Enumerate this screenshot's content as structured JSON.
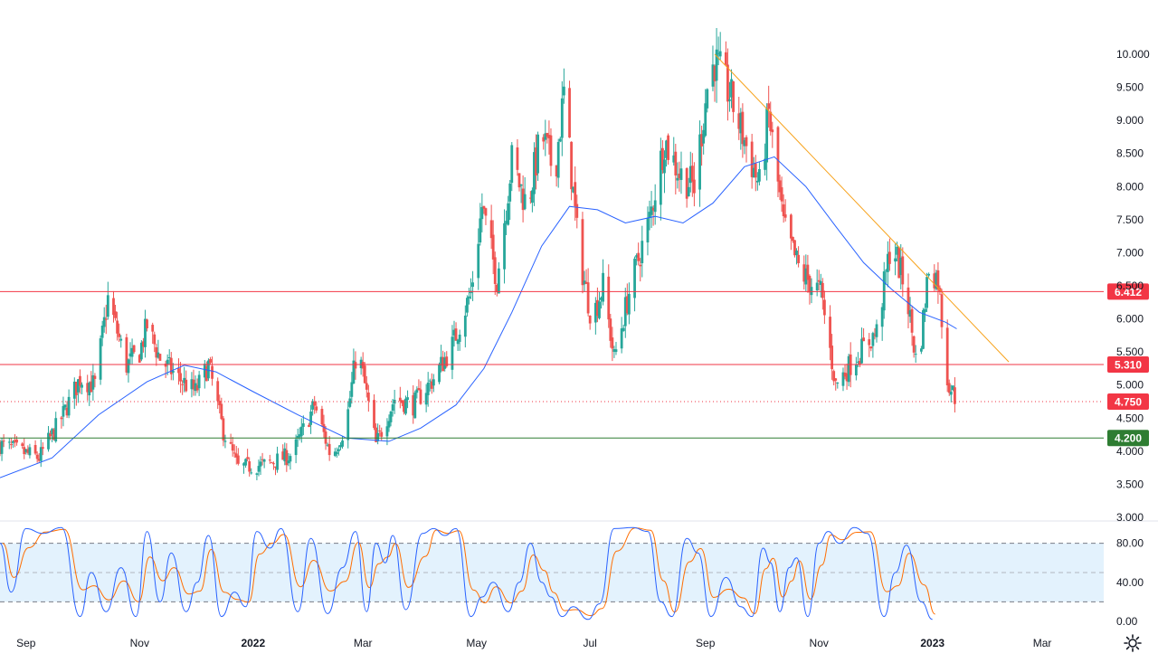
{
  "colors": {
    "up": "#26a69a",
    "down": "#ef5350",
    "ma": "#2962ff",
    "trendline": "#f7a21b",
    "level_red": "#f23645",
    "level_green": "#2e7d32",
    "osc_k": "#2962ff",
    "osc_d": "#ff6d00",
    "osc_band": "#e3f2fd"
  },
  "icons": {
    "settings": "gear-icon"
  },
  "chart_data": [
    {
      "type": "candlestick",
      "title": "",
      "ylim": [
        3.0,
        10.0
      ],
      "y_ticks": [
        "10.000",
        "9.500",
        "9.000",
        "8.500",
        "8.000",
        "7.500",
        "7.000",
        "6.500",
        "6.000",
        "5.500",
        "5.000",
        "4.500",
        "4.000",
        "3.500",
        "3.000"
      ],
      "x_ticks": [
        "Sep",
        "Nov",
        "2022",
        "Mar",
        "May",
        "Jul",
        "Sep",
        "Nov",
        "2023",
        "Mar"
      ],
      "x_tick_dates": [
        "2021-09-01",
        "2021-11-01",
        "2022-01-01",
        "2022-03-01",
        "2022-05-01",
        "2022-07-01",
        "2022-09-01",
        "2022-11-01",
        "2023-01-01",
        "2023-03-01"
      ],
      "x_range": [
        "2021-08-18",
        "2023-04-03"
      ],
      "close_path": [
        [
          "2021-08-18",
          4.1
        ],
        [
          "2021-09-08",
          3.9
        ],
        [
          "2021-09-20",
          4.5
        ],
        [
          "2021-09-30",
          5.1
        ],
        [
          "2021-10-08",
          5.0
        ],
        [
          "2021-10-15",
          6.3
        ],
        [
          "2021-10-25",
          5.3
        ],
        [
          "2021-11-01",
          5.5
        ],
        [
          "2021-11-05",
          5.9
        ],
        [
          "2021-11-12",
          5.4
        ],
        [
          "2021-11-22",
          5.1
        ],
        [
          "2021-12-01",
          4.9
        ],
        [
          "2021-12-08",
          5.3
        ],
        [
          "2021-12-16",
          4.3
        ],
        [
          "2021-12-24",
          3.75
        ],
        [
          "2022-01-08",
          3.8
        ],
        [
          "2022-01-22",
          3.95
        ],
        [
          "2022-02-03",
          4.7
        ],
        [
          "2022-02-12",
          3.9
        ],
        [
          "2022-02-20",
          4.4
        ],
        [
          "2022-02-26",
          5.6
        ],
        [
          "2022-03-08",
          4.1
        ],
        [
          "2022-03-18",
          4.8
        ],
        [
          "2022-03-28",
          4.7
        ],
        [
          "2022-04-08",
          5.1
        ],
        [
          "2022-04-18",
          5.6
        ],
        [
          "2022-04-28",
          6.4
        ],
        [
          "2022-05-04",
          7.7
        ],
        [
          "2022-05-12",
          6.6
        ],
        [
          "2022-05-20",
          8.4
        ],
        [
          "2022-05-28",
          7.7
        ],
        [
          "2022-06-05",
          8.8
        ],
        [
          "2022-06-12",
          8.2
        ],
        [
          "2022-06-17",
          9.4
        ],
        [
          "2022-06-25",
          7.0
        ],
        [
          "2022-07-02",
          6.0
        ],
        [
          "2022-07-08",
          6.5
        ],
        [
          "2022-07-14",
          5.4
        ],
        [
          "2022-07-22",
          6.4
        ],
        [
          "2022-08-02",
          7.5
        ],
        [
          "2022-08-10",
          8.7
        ],
        [
          "2022-08-18",
          8.2
        ],
        [
          "2022-08-26",
          8.0
        ],
        [
          "2022-09-02",
          9.5
        ],
        [
          "2022-09-06",
          9.9
        ],
        [
          "2022-09-14",
          9.4
        ],
        [
          "2022-09-22",
          8.7
        ],
        [
          "2022-09-30",
          8.0
        ],
        [
          "2022-10-05",
          9.1
        ],
        [
          "2022-10-13",
          7.4
        ],
        [
          "2022-10-22",
          6.7
        ],
        [
          "2022-11-02",
          6.4
        ],
        [
          "2022-11-10",
          5.0
        ],
        [
          "2022-11-20",
          5.4
        ],
        [
          "2022-12-02",
          5.8
        ],
        [
          "2022-12-10",
          7.2
        ],
        [
          "2022-12-18",
          6.4
        ],
        [
          "2022-12-24",
          5.2
        ],
        [
          "2022-12-30",
          6.8
        ],
        [
          "2023-01-04",
          6.6
        ],
        [
          "2023-01-09",
          5.1
        ],
        [
          "2023-01-14",
          4.75
        ]
      ],
      "moving_average": [
        [
          "2021-08-18",
          3.6
        ],
        [
          "2021-09-15",
          3.9
        ],
        [
          "2021-10-10",
          4.55
        ],
        [
          "2021-11-05",
          5.05
        ],
        [
          "2021-11-25",
          5.3
        ],
        [
          "2021-12-12",
          5.2
        ],
        [
          "2022-01-01",
          4.9
        ],
        [
          "2022-01-25",
          4.55
        ],
        [
          "2022-02-20",
          4.2
        ],
        [
          "2022-03-15",
          4.15
        ],
        [
          "2022-04-01",
          4.35
        ],
        [
          "2022-04-20",
          4.7
        ],
        [
          "2022-05-05",
          5.25
        ],
        [
          "2022-05-20",
          6.1
        ],
        [
          "2022-06-05",
          7.1
        ],
        [
          "2022-06-20",
          7.7
        ],
        [
          "2022-07-05",
          7.65
        ],
        [
          "2022-07-20",
          7.45
        ],
        [
          "2022-08-05",
          7.55
        ],
        [
          "2022-08-20",
          7.45
        ],
        [
          "2022-09-05",
          7.75
        ],
        [
          "2022-09-22",
          8.3
        ],
        [
          "2022-10-08",
          8.45
        ],
        [
          "2022-10-25",
          8.0
        ],
        [
          "2022-11-10",
          7.4
        ],
        [
          "2022-11-25",
          6.85
        ],
        [
          "2022-12-10",
          6.45
        ],
        [
          "2022-12-25",
          6.1
        ],
        [
          "2023-01-08",
          5.95
        ],
        [
          "2023-01-14",
          5.85
        ]
      ],
      "trendline": [
        [
          "2022-09-06",
          10.0
        ],
        [
          "2023-02-11",
          5.35
        ]
      ],
      "levels": [
        {
          "label": "6.412",
          "value": 6.412,
          "color": "#f23645",
          "style": "solid"
        },
        {
          "label": "5.310",
          "value": 5.31,
          "color": "#f23645",
          "style": "solid"
        },
        {
          "label": "4.750",
          "value": 4.75,
          "color": "#f23645",
          "style": "dotted"
        },
        {
          "label": "4.200",
          "value": 4.2,
          "color": "#2e7d32",
          "style": "solid"
        }
      ]
    },
    {
      "type": "line",
      "title": "",
      "ylim": [
        0,
        100
      ],
      "y_ticks": [
        "80.00",
        "40.00",
        "0.00"
      ],
      "y_tick_values": [
        80,
        40,
        0
      ],
      "band": [
        20,
        80
      ],
      "midline": 50,
      "series": [
        {
          "values": [
            [
              80,
              "2021-08-18"
            ],
            [
              30,
              "2021-08-24"
            ],
            [
              95,
              "2021-09-01"
            ],
            [
              90,
              "2021-09-10"
            ],
            [
              96,
              "2021-09-20"
            ],
            [
              5,
              "2021-09-30"
            ],
            [
              50,
              "2021-10-06"
            ],
            [
              10,
              "2021-10-14"
            ],
            [
              55,
              "2021-10-22"
            ],
            [
              5,
              "2021-10-30"
            ],
            [
              92,
              "2021-11-05"
            ],
            [
              20,
              "2021-11-12"
            ],
            [
              70,
              "2021-11-18"
            ],
            [
              10,
              "2021-11-26"
            ],
            [
              40,
              "2021-12-02"
            ],
            [
              88,
              "2021-12-08"
            ],
            [
              5,
              "2021-12-15"
            ],
            [
              30,
              "2021-12-22"
            ],
            [
              15,
              "2021-12-28"
            ],
            [
              92,
              "2022-01-03"
            ],
            [
              75,
              "2022-01-10"
            ],
            [
              95,
              "2022-01-16"
            ],
            [
              10,
              "2022-01-25"
            ],
            [
              85,
              "2022-02-01"
            ],
            [
              8,
              "2022-02-10"
            ],
            [
              55,
              "2022-02-18"
            ],
            [
              92,
              "2022-02-25"
            ],
            [
              10,
              "2022-03-03"
            ],
            [
              80,
              "2022-03-08"
            ],
            [
              60,
              "2022-03-13"
            ],
            [
              88,
              "2022-03-17"
            ],
            [
              12,
              "2022-03-24"
            ],
            [
              90,
              "2022-04-02"
            ],
            [
              95,
              "2022-04-08"
            ],
            [
              88,
              "2022-04-14"
            ],
            [
              95,
              "2022-04-20"
            ],
            [
              5,
              "2022-04-28"
            ],
            [
              25,
              "2022-05-04"
            ],
            [
              40,
              "2022-05-10"
            ],
            [
              10,
              "2022-05-18"
            ],
            [
              40,
              "2022-05-24"
            ],
            [
              80,
              "2022-05-30"
            ],
            [
              40,
              "2022-06-05"
            ],
            [
              25,
              "2022-06-10"
            ],
            [
              5,
              "2022-06-16"
            ],
            [
              15,
              "2022-06-22"
            ],
            [
              2,
              "2022-06-30"
            ],
            [
              18,
              "2022-07-06"
            ],
            [
              95,
              "2022-07-14"
            ],
            [
              96,
              "2022-07-24"
            ],
            [
              92,
              "2022-08-01"
            ],
            [
              20,
              "2022-08-08"
            ],
            [
              5,
              "2022-08-14"
            ],
            [
              85,
              "2022-08-22"
            ],
            [
              70,
              "2022-08-28"
            ],
            [
              5,
              "2022-09-04"
            ],
            [
              45,
              "2022-09-12"
            ],
            [
              15,
              "2022-09-20"
            ],
            [
              5,
              "2022-09-26"
            ],
            [
              75,
              "2022-10-02"
            ],
            [
              60,
              "2022-10-06"
            ],
            [
              10,
              "2022-10-11"
            ],
            [
              55,
              "2022-10-16"
            ],
            [
              65,
              "2022-10-20"
            ],
            [
              5,
              "2022-10-26"
            ],
            [
              80,
              "2022-11-01"
            ],
            [
              92,
              "2022-11-06"
            ],
            [
              80,
              "2022-11-12"
            ],
            [
              96,
              "2022-11-20"
            ],
            [
              90,
              "2022-11-27"
            ],
            [
              5,
              "2022-12-06"
            ],
            [
              50,
              "2022-12-12"
            ],
            [
              78,
              "2022-12-18"
            ],
            [
              20,
              "2022-12-26"
            ],
            [
              2,
              "2023-01-01"
            ]
          ],
          "color": "#2962ff"
        }
      ]
    }
  ]
}
